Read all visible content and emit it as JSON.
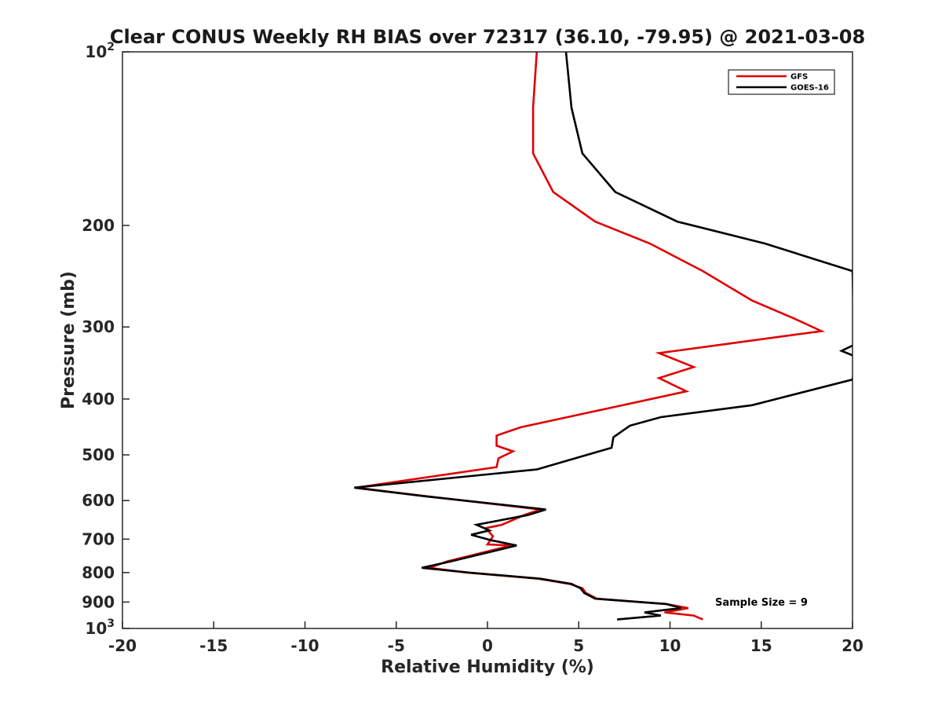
{
  "chart_data": {
    "type": "line",
    "title": "Clear CONUS Weekly RH BIAS over 72317 (36.10, -79.95) @ 2021-03-08",
    "xlabel": "Relative Humidity (%)",
    "ylabel": "Pressure (mb)",
    "xlim": [
      -20,
      20
    ],
    "ylim": [
      100,
      1000
    ],
    "y_scale": "log",
    "y_reversed": true,
    "grid": false,
    "legend_position": "top-right",
    "x_ticks": [
      -20,
      -15,
      -10,
      -5,
      0,
      5,
      10,
      15,
      20
    ],
    "x_tick_labels": [
      "-20",
      "-15",
      "-10",
      "-5",
      "0",
      "5",
      "10",
      "15",
      "20"
    ],
    "y_ticks": [
      100,
      200,
      300,
      400,
      500,
      600,
      700,
      800,
      900,
      1000
    ],
    "y_tick_labels": [
      {
        "base": "10",
        "sup": "2"
      },
      {
        "base": "200",
        "sup": ""
      },
      {
        "base": "300",
        "sup": ""
      },
      {
        "base": "400",
        "sup": ""
      },
      {
        "base": "500",
        "sup": ""
      },
      {
        "base": "600",
        "sup": ""
      },
      {
        "base": "700",
        "sup": ""
      },
      {
        "base": "800",
        "sup": ""
      },
      {
        "base": "900",
        "sup": ""
      },
      {
        "base": "10",
        "sup": "3"
      }
    ],
    "annotation": "Sample Size = 9",
    "series": [
      {
        "name": "GFS",
        "color": "#e00000",
        "points": [
          [
            2.7,
            100
          ],
          [
            2.5,
            125
          ],
          [
            2.5,
            150
          ],
          [
            3.6,
            175
          ],
          [
            5.9,
            197
          ],
          [
            8.9,
            215
          ],
          [
            11.8,
            240
          ],
          [
            14.5,
            270
          ],
          [
            16.8,
            290
          ],
          [
            18.3,
            305
          ],
          [
            9.4,
            333
          ],
          [
            11.3,
            352
          ],
          [
            9.4,
            368
          ],
          [
            10.9,
            388
          ],
          [
            1.8,
            448
          ],
          [
            0.5,
            463
          ],
          [
            0.5,
            482
          ],
          [
            1.4,
            493
          ],
          [
            0.6,
            507
          ],
          [
            0.5,
            525
          ],
          [
            -7.2,
            570
          ],
          [
            -3.3,
            590
          ],
          [
            2.9,
            622
          ],
          [
            2.0,
            636
          ],
          [
            0.8,
            661
          ],
          [
            -0.1,
            670
          ],
          [
            0.3,
            692
          ],
          [
            0.0,
            715
          ],
          [
            1.3,
            718
          ],
          [
            -2.2,
            765
          ],
          [
            -3.2,
            785
          ],
          [
            -1.1,
            800
          ],
          [
            2.8,
            820
          ],
          [
            4.5,
            837
          ],
          [
            5.2,
            852
          ],
          [
            5.4,
            868
          ],
          [
            6.0,
            888
          ],
          [
            9.8,
            907
          ],
          [
            11.0,
            922
          ],
          [
            9.7,
            938
          ],
          [
            11.3,
            950
          ],
          [
            11.8,
            965
          ]
        ]
      },
      {
        "name": "GOES-16",
        "color": "#000000",
        "points": [
          [
            4.3,
            100
          ],
          [
            4.6,
            125
          ],
          [
            5.2,
            150
          ],
          [
            7.0,
            175
          ],
          [
            10.4,
            197
          ],
          [
            15.2,
            215
          ],
          [
            20.0,
            240
          ],
          [
            20.1,
            322
          ],
          [
            19.4,
            330
          ],
          [
            20.2,
            338
          ],
          [
            20.0,
            370
          ],
          [
            14.5,
            410
          ],
          [
            9.5,
            430
          ],
          [
            7.8,
            445
          ],
          [
            6.9,
            466
          ],
          [
            6.8,
            486
          ],
          [
            2.7,
            530
          ],
          [
            -7.3,
            570
          ],
          [
            -3.4,
            590
          ],
          [
            3.2,
            622
          ],
          [
            2.2,
            636
          ],
          [
            -0.6,
            661
          ],
          [
            0.1,
            676
          ],
          [
            -0.9,
            688
          ],
          [
            0.2,
            703
          ],
          [
            1.6,
            718
          ],
          [
            -2.0,
            765
          ],
          [
            -3.6,
            785
          ],
          [
            -1.0,
            800
          ],
          [
            2.9,
            820
          ],
          [
            4.6,
            837
          ],
          [
            5.1,
            852
          ],
          [
            5.3,
            868
          ],
          [
            5.9,
            888
          ],
          [
            9.8,
            907
          ],
          [
            10.6,
            922
          ],
          [
            8.6,
            938
          ],
          [
            9.5,
            950
          ],
          [
            7.1,
            965
          ]
        ]
      }
    ]
  }
}
